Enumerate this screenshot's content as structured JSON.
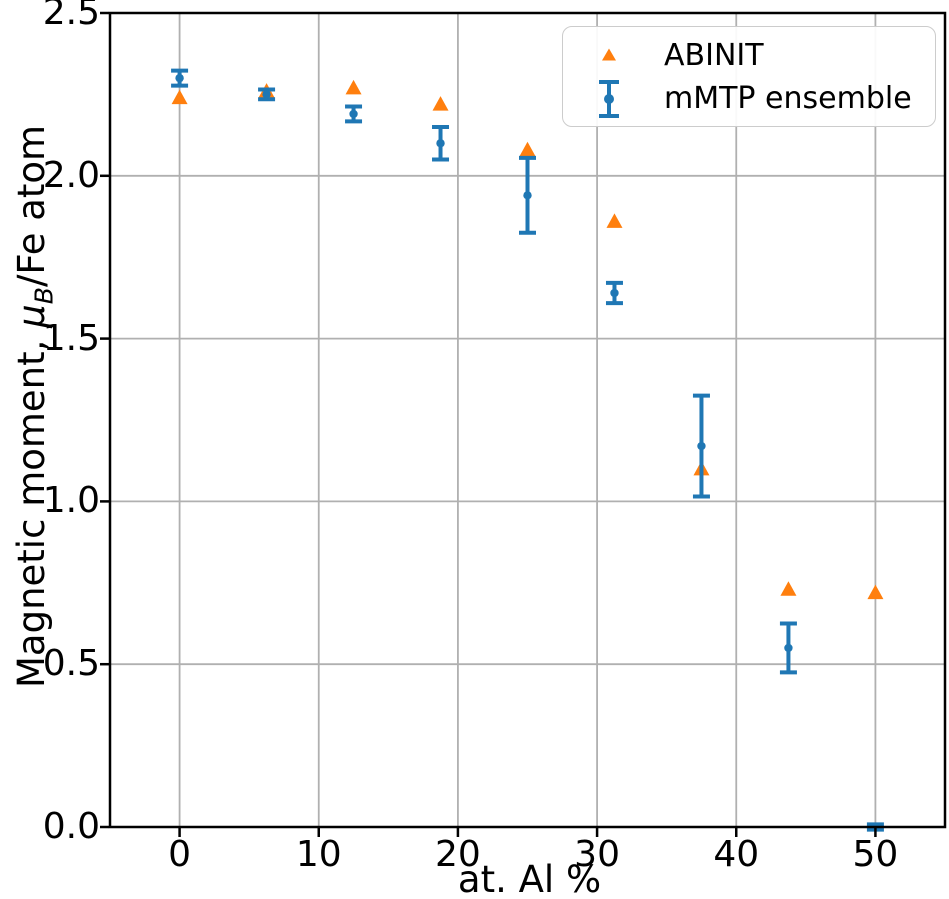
{
  "figure": {
    "background": "#ffffff",
    "text_color": "#000000",
    "spine_color": "#000000"
  },
  "chart_data": {
    "type": "scatter",
    "title": "",
    "xlabel": "at. Al %",
    "ylabel": "Magnetic moment, μB/Fe atom",
    "ylabel_parts": {
      "prefix": "Magnetic moment, ",
      "mu": "μ",
      "mu_subscript": "B",
      "suffix": "/Fe atom"
    },
    "xlim": [
      -5,
      55
    ],
    "ylim": [
      0,
      2.5
    ],
    "xticks": [
      0,
      10,
      20,
      30,
      40,
      50
    ],
    "xtick_labels": [
      "0",
      "10",
      "20",
      "30",
      "40",
      "50"
    ],
    "yticks": [
      0,
      0.5,
      1.0,
      1.5,
      2.0,
      2.5
    ],
    "ytick_labels": [
      "0.0",
      "0.5",
      "1.0",
      "1.5",
      "2.0",
      "2.5"
    ],
    "grid": true,
    "grid_color": "#b0b0b0",
    "legend_position": "upper right",
    "x": [
      0,
      6.25,
      12.5,
      18.75,
      25,
      31.25,
      37.5,
      43.75,
      50
    ],
    "series": [
      {
        "name": "ABINIT",
        "marker": "triangle",
        "color": "#ff7f0e",
        "y": [
          2.24,
          2.26,
          2.27,
          2.22,
          2.08,
          1.86,
          1.1,
          0.73,
          0.72
        ]
      },
      {
        "name": "mMTP ensemble",
        "marker": "errorbar",
        "color": "#1f77b4",
        "y": [
          2.3,
          2.25,
          2.19,
          2.1,
          1.94,
          1.64,
          1.17,
          0.55,
          0.0
        ],
        "yerr": [
          0.023,
          0.015,
          0.023,
          0.05,
          0.115,
          0.031,
          0.155,
          0.075,
          0.008
        ]
      }
    ]
  }
}
